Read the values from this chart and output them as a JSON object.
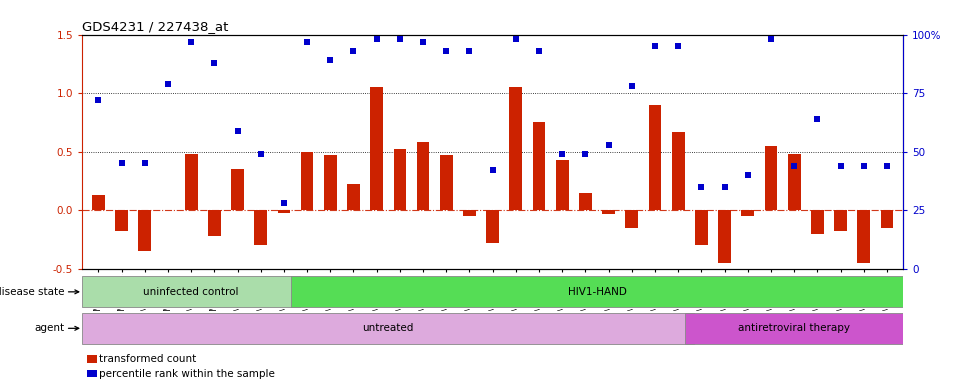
{
  "title": "GDS4231 / 227438_at",
  "samples": [
    "GSM697483",
    "GSM697484",
    "GSM697485",
    "GSM697486",
    "GSM697487",
    "GSM697488",
    "GSM697489",
    "GSM697490",
    "GSM697491",
    "GSM697492",
    "GSM697493",
    "GSM697494",
    "GSM697495",
    "GSM697496",
    "GSM697497",
    "GSM697498",
    "GSM697499",
    "GSM697500",
    "GSM697501",
    "GSM697502",
    "GSM697503",
    "GSM697504",
    "GSM697505",
    "GSM697506",
    "GSM697507",
    "GSM697508",
    "GSM697509",
    "GSM697510",
    "GSM697511",
    "GSM697512",
    "GSM697513",
    "GSM697514",
    "GSM697515",
    "GSM697516",
    "GSM697517"
  ],
  "bar_values": [
    0.13,
    -0.18,
    -0.35,
    0.0,
    0.48,
    -0.22,
    0.35,
    -0.3,
    -0.02,
    0.5,
    0.47,
    0.22,
    1.05,
    0.52,
    0.58,
    0.47,
    -0.05,
    -0.28,
    1.05,
    0.75,
    0.43,
    0.15,
    -0.03,
    -0.15,
    0.9,
    0.67,
    -0.3,
    -0.45,
    -0.05,
    0.55,
    0.48,
    -0.2,
    -0.18,
    -0.45,
    -0.15
  ],
  "scatter_pct": [
    72,
    45,
    45,
    79,
    97,
    88,
    59,
    49,
    28,
    97,
    89,
    93,
    98,
    98,
    97,
    93,
    93,
    42,
    98,
    93,
    49,
    49,
    53,
    78,
    95,
    95,
    35,
    35,
    40,
    98,
    44,
    64,
    44,
    44,
    44
  ],
  "ylim_left": [
    -0.5,
    1.5
  ],
  "ylim_right": [
    0,
    100
  ],
  "yticks_left": [
    -0.5,
    0.0,
    0.5,
    1.0,
    1.5
  ],
  "yticks_right": [
    0,
    25,
    50,
    75,
    100
  ],
  "bar_color": "#CC2200",
  "scatter_color": "#0000CC",
  "zero_line_color": "#CC2200",
  "dotted_hlines": [
    0.5,
    1.0
  ],
  "disease_groups": [
    {
      "label": "uninfected control",
      "start": 0,
      "end": 9,
      "color": "#AADDAA"
    },
    {
      "label": "HIV1-HAND",
      "start": 9,
      "end": 35,
      "color": "#55DD55"
    }
  ],
  "agent_groups": [
    {
      "label": "untreated",
      "start": 0,
      "end": 26,
      "color": "#DDAADD"
    },
    {
      "label": "antiretroviral therapy",
      "start": 26,
      "end": 35,
      "color": "#CC55CC"
    }
  ],
  "legend_items": [
    {
      "label": "transformed count",
      "color": "#CC2200"
    },
    {
      "label": "percentile rank within the sample",
      "color": "#0000CC"
    }
  ]
}
